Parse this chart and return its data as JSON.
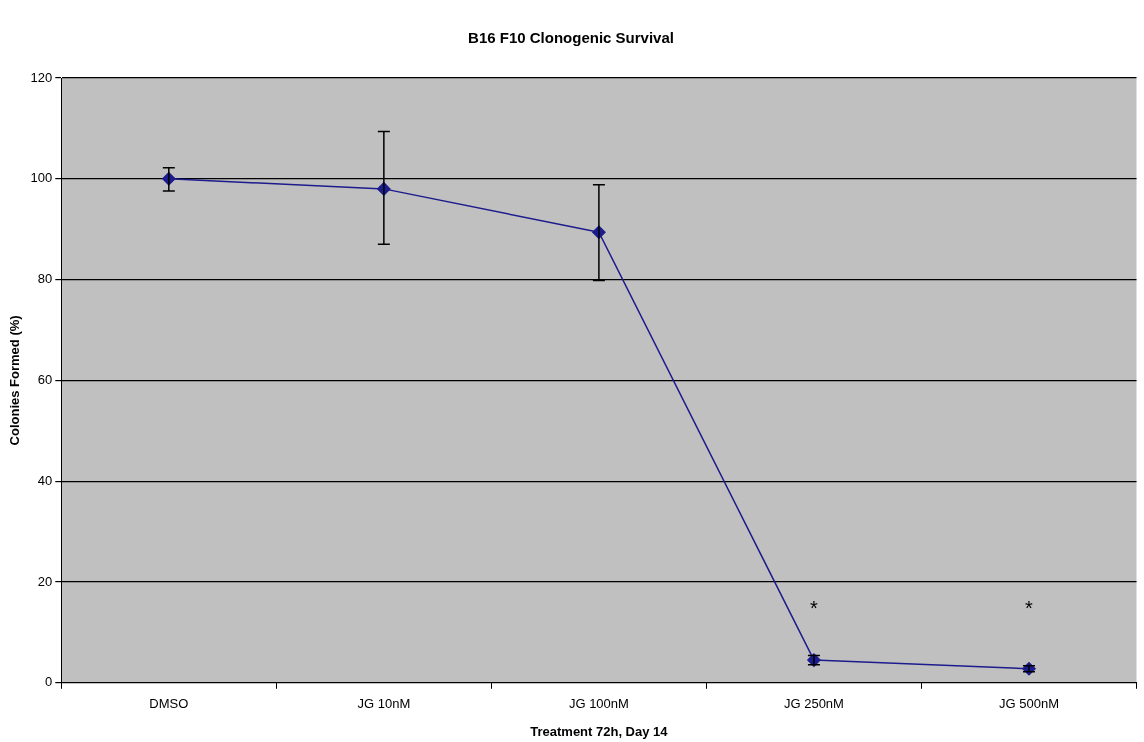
{
  "chart_data": {
    "type": "line",
    "title": "B16 F10 Clonogenic Survival",
    "xlabel": "Treatment 72h, Day 14",
    "ylabel": "Colonies Formed (%)",
    "categories": [
      "DMSO",
      "JG 10nM",
      "JG 100nM",
      "JG 250nM",
      "JG 500nM"
    ],
    "series": [
      {
        "color": "#1c1c8c",
        "values": [
          100,
          98,
          89.4,
          4.5,
          2.8
        ],
        "errors": [
          [
            97.6,
            102.2
          ],
          [
            87,
            109.4
          ],
          [
            79.8,
            98.8
          ],
          [
            3.6,
            5.4
          ],
          [
            2.2,
            3.4
          ]
        ]
      }
    ],
    "ylim": [
      0,
      120
    ],
    "yticks": [
      0,
      20,
      40,
      60,
      80,
      100,
      120
    ],
    "grid": "y",
    "legend": false,
    "marker": "diamond",
    "line_style": "solid",
    "annotations": [
      "*",
      "*"
    ]
  }
}
